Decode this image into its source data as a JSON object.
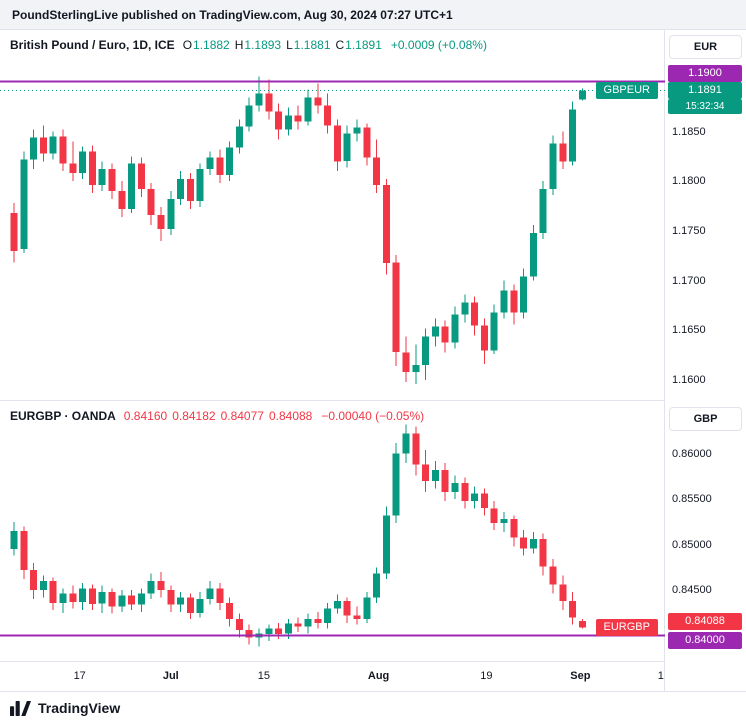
{
  "attribution": "PoundSterlingLive published on TradingView.com, Aug 30, 2024 07:27 UTC+1",
  "footer": {
    "brand": "TradingView"
  },
  "colors": {
    "up": "#089981",
    "down": "#f23645",
    "level": "#9c27b0",
    "text": "#131722",
    "border": "#e0e3eb",
    "header_bg": "#f1f3f6"
  },
  "panels": [
    {
      "legend_title": "British Pound / Euro, 1D, ICE",
      "ohlc": [
        {
          "label": "O",
          "value": "1.1882"
        },
        {
          "label": "H",
          "value": "1.1893"
        },
        {
          "label": "L",
          "value": "1.1881"
        },
        {
          "label": "C",
          "value": "1.1891"
        }
      ],
      "change": "+0.0009 (+0.08%)",
      "currency_button": "EUR",
      "symbol_tag": "GBPEUR",
      "price_badge": "1.1891",
      "countdown": "15:32:34",
      "level_badge": "1.1900"
    },
    {
      "legend_title": "EURGBP · OANDA",
      "values": [
        "0.84160",
        "0.84182",
        "0.84077",
        "0.84088"
      ],
      "change": "−0.00040 (−0.05%)",
      "currency_button": "GBP",
      "symbol_tag": "EURGBP",
      "price_badge": "0.84088",
      "level_badge": "0.84000"
    }
  ],
  "chart_data": [
    {
      "type": "candlestick",
      "symbol": "GBPEUR",
      "title": "British Pound / Euro, 1D, ICE",
      "timeframe": "1D",
      "ymin": 1.158,
      "ymax": 1.1952,
      "level_line": 1.19,
      "current_price": 1.1891,
      "last_ohlc": {
        "open": 1.1882,
        "high": 1.1893,
        "low": 1.1881,
        "close": 1.1891,
        "change": 0.0009,
        "change_pct": 0.08
      },
      "ticks": [
        {
          "value": 1.185,
          "label": "1.1850"
        },
        {
          "value": 1.18,
          "label": "1.1800"
        },
        {
          "value": 1.175,
          "label": "1.1750"
        },
        {
          "value": 1.17,
          "label": "1.1700"
        },
        {
          "value": 1.165,
          "label": "1.1650"
        },
        {
          "value": 1.16,
          "label": "1.1600"
        }
      ],
      "x_ticks": [
        {
          "label": "17",
          "i": 6.7
        },
        {
          "label": "Jul",
          "i": 16,
          "b": true
        },
        {
          "label": "15",
          "i": 25.5
        },
        {
          "label": "Aug",
          "i": 37.2,
          "b": true
        },
        {
          "label": "19",
          "i": 48.2
        },
        {
          "label": "Sep",
          "i": 57.8,
          "b": true
        },
        {
          "label": "1",
          "i": 66
        }
      ],
      "candles": [
        [
          1.1768,
          1.1778,
          1.1718,
          1.173
        ],
        [
          1.1732,
          1.183,
          1.1728,
          1.1822
        ],
        [
          1.1822,
          1.1852,
          1.1812,
          1.1844
        ],
        [
          1.1844,
          1.1856,
          1.182,
          1.1828
        ],
        [
          1.1828,
          1.185,
          1.1822,
          1.1845
        ],
        [
          1.1845,
          1.1852,
          1.181,
          1.1818
        ],
        [
          1.1818,
          1.184,
          1.18,
          1.1808
        ],
        [
          1.1808,
          1.1835,
          1.1802,
          1.183
        ],
        [
          1.183,
          1.1836,
          1.1788,
          1.1796
        ],
        [
          1.1796,
          1.182,
          1.179,
          1.1812
        ],
        [
          1.1812,
          1.1818,
          1.1782,
          1.179
        ],
        [
          1.179,
          1.18,
          1.1764,
          1.1772
        ],
        [
          1.1772,
          1.1825,
          1.1768,
          1.1818
        ],
        [
          1.1818,
          1.1824,
          1.1784,
          1.1792
        ],
        [
          1.1792,
          1.1798,
          1.1756,
          1.1766
        ],
        [
          1.1766,
          1.1774,
          1.174,
          1.1752
        ],
        [
          1.1752,
          1.179,
          1.1746,
          1.1782
        ],
        [
          1.1782,
          1.181,
          1.1776,
          1.1802
        ],
        [
          1.1802,
          1.1808,
          1.1772,
          1.178
        ],
        [
          1.178,
          1.1818,
          1.1774,
          1.1812
        ],
        [
          1.1812,
          1.183,
          1.1806,
          1.1824
        ],
        [
          1.1824,
          1.1832,
          1.1798,
          1.1806
        ],
        [
          1.1806,
          1.184,
          1.18,
          1.1834
        ],
        [
          1.1834,
          1.1862,
          1.1828,
          1.1855
        ],
        [
          1.1855,
          1.1884,
          1.185,
          1.1876
        ],
        [
          1.1876,
          1.1905,
          1.187,
          1.1888
        ],
        [
          1.1888,
          1.1902,
          1.1862,
          1.187
        ],
        [
          1.187,
          1.1878,
          1.1842,
          1.1852
        ],
        [
          1.1852,
          1.1874,
          1.1846,
          1.1866
        ],
        [
          1.1866,
          1.1876,
          1.1852,
          1.186
        ],
        [
          1.186,
          1.1892,
          1.1856,
          1.1884
        ],
        [
          1.1884,
          1.1898,
          1.1868,
          1.1876
        ],
        [
          1.1876,
          1.1888,
          1.1848,
          1.1856
        ],
        [
          1.1856,
          1.1862,
          1.181,
          1.182
        ],
        [
          1.182,
          1.1856,
          1.1814,
          1.1848
        ],
        [
          1.1848,
          1.1862,
          1.184,
          1.1854
        ],
        [
          1.1854,
          1.1858,
          1.1816,
          1.1824
        ],
        [
          1.1824,
          1.1842,
          1.1788,
          1.1796
        ],
        [
          1.1796,
          1.1802,
          1.1706,
          1.1718
        ],
        [
          1.1718,
          1.1726,
          1.1614,
          1.1628
        ],
        [
          1.1628,
          1.1644,
          1.1598,
          1.1608
        ],
        [
          1.1608,
          1.1636,
          1.1596,
          1.1615
        ],
        [
          1.1615,
          1.1652,
          1.16,
          1.1644
        ],
        [
          1.1644,
          1.1662,
          1.1634,
          1.1654
        ],
        [
          1.1654,
          1.166,
          1.1628,
          1.1638
        ],
        [
          1.1638,
          1.1674,
          1.1632,
          1.1666
        ],
        [
          1.1666,
          1.1686,
          1.1658,
          1.1678
        ],
        [
          1.1678,
          1.1684,
          1.1645,
          1.1655
        ],
        [
          1.1655,
          1.1662,
          1.1616,
          1.163
        ],
        [
          1.163,
          1.1676,
          1.1626,
          1.1668
        ],
        [
          1.1668,
          1.17,
          1.1662,
          1.169
        ],
        [
          1.169,
          1.1696,
          1.1656,
          1.1668
        ],
        [
          1.1668,
          1.1712,
          1.1662,
          1.1704
        ],
        [
          1.1704,
          1.1756,
          1.17,
          1.1748
        ],
        [
          1.1748,
          1.18,
          1.1742,
          1.1792
        ],
        [
          1.1792,
          1.1846,
          1.1786,
          1.1838
        ],
        [
          1.1838,
          1.185,
          1.1812,
          1.182
        ],
        [
          1.182,
          1.188,
          1.1816,
          1.1872
        ],
        [
          1.1882,
          1.1893,
          1.1881,
          1.1891
        ]
      ]
    },
    {
      "type": "candlestick",
      "symbol": "EURGBP",
      "title": "EURGBP · OANDA",
      "timeframe": "1D",
      "ymin": 0.8372,
      "ymax": 0.8658,
      "level_line": 0.84,
      "current_price": 0.84088,
      "last_ohlc": {
        "open": 0.8416,
        "high": 0.84182,
        "low": 0.84077,
        "close": 0.84088,
        "change": -0.0004,
        "change_pct": -0.05
      },
      "ticks": [
        {
          "value": 0.86,
          "label": "0.86000"
        },
        {
          "value": 0.855,
          "label": "0.85500"
        },
        {
          "value": 0.85,
          "label": "0.85000"
        },
        {
          "value": 0.845,
          "label": "0.84500"
        }
      ],
      "candles": [
        [
          0.8495,
          0.8525,
          0.8488,
          0.8515
        ],
        [
          0.8515,
          0.852,
          0.8462,
          0.8472
        ],
        [
          0.8472,
          0.848,
          0.844,
          0.845
        ],
        [
          0.845,
          0.8466,
          0.8442,
          0.846
        ],
        [
          0.846,
          0.8464,
          0.8428,
          0.8436
        ],
        [
          0.8436,
          0.8452,
          0.8425,
          0.8446
        ],
        [
          0.8446,
          0.8455,
          0.843,
          0.8437
        ],
        [
          0.8437,
          0.8458,
          0.8428,
          0.8452
        ],
        [
          0.8452,
          0.8456,
          0.8428,
          0.8435
        ],
        [
          0.8435,
          0.8455,
          0.8425,
          0.8448
        ],
        [
          0.8448,
          0.8452,
          0.8424,
          0.8432
        ],
        [
          0.8432,
          0.845,
          0.8426,
          0.8444
        ],
        [
          0.8444,
          0.845,
          0.8428,
          0.8434
        ],
        [
          0.8434,
          0.8452,
          0.8426,
          0.8446
        ],
        [
          0.8446,
          0.8468,
          0.844,
          0.846
        ],
        [
          0.846,
          0.847,
          0.8442,
          0.845
        ],
        [
          0.845,
          0.8455,
          0.8426,
          0.8434
        ],
        [
          0.8434,
          0.8448,
          0.8426,
          0.8442
        ],
        [
          0.8442,
          0.8446,
          0.8418,
          0.8425
        ],
        [
          0.8425,
          0.8448,
          0.842,
          0.844
        ],
        [
          0.844,
          0.846,
          0.8434,
          0.8452
        ],
        [
          0.8452,
          0.8458,
          0.8428,
          0.8436
        ],
        [
          0.8436,
          0.8442,
          0.841,
          0.8418
        ],
        [
          0.8418,
          0.8424,
          0.8398,
          0.8406
        ],
        [
          0.8406,
          0.8412,
          0.839,
          0.8398
        ],
        [
          0.8398,
          0.8408,
          0.8388,
          0.8402
        ],
        [
          0.8402,
          0.8412,
          0.8394,
          0.8408
        ],
        [
          0.8408,
          0.8414,
          0.8396,
          0.8402
        ],
        [
          0.8402,
          0.8418,
          0.8396,
          0.8413
        ],
        [
          0.8413,
          0.842,
          0.8404,
          0.841
        ],
        [
          0.841,
          0.8424,
          0.8402,
          0.8418
        ],
        [
          0.8418,
          0.8426,
          0.8408,
          0.8414
        ],
        [
          0.8414,
          0.8436,
          0.8408,
          0.843
        ],
        [
          0.843,
          0.8445,
          0.8424,
          0.8438
        ],
        [
          0.8438,
          0.8442,
          0.8414,
          0.8422
        ],
        [
          0.8422,
          0.8432,
          0.8412,
          0.8418
        ],
        [
          0.8418,
          0.8448,
          0.8414,
          0.8442
        ],
        [
          0.8442,
          0.8475,
          0.8436,
          0.8468
        ],
        [
          0.8468,
          0.8542,
          0.8462,
          0.8532
        ],
        [
          0.8532,
          0.8612,
          0.8524,
          0.86
        ],
        [
          0.86,
          0.8632,
          0.859,
          0.8622
        ],
        [
          0.8622,
          0.863,
          0.8576,
          0.8588
        ],
        [
          0.8588,
          0.8604,
          0.8558,
          0.857
        ],
        [
          0.857,
          0.8592,
          0.8562,
          0.8582
        ],
        [
          0.8582,
          0.859,
          0.8548,
          0.8558
        ],
        [
          0.8558,
          0.8576,
          0.855,
          0.8568
        ],
        [
          0.8568,
          0.8574,
          0.854,
          0.8548
        ],
        [
          0.8548,
          0.8564,
          0.854,
          0.8556
        ],
        [
          0.8556,
          0.8562,
          0.8532,
          0.854
        ],
        [
          0.854,
          0.8548,
          0.8516,
          0.8524
        ],
        [
          0.8524,
          0.8536,
          0.8514,
          0.8528
        ],
        [
          0.8528,
          0.8532,
          0.8498,
          0.8508
        ],
        [
          0.8508,
          0.8516,
          0.8488,
          0.8496
        ],
        [
          0.8496,
          0.8514,
          0.849,
          0.8506
        ],
        [
          0.8506,
          0.8512,
          0.8466,
          0.8476
        ],
        [
          0.8476,
          0.8484,
          0.8446,
          0.8456
        ],
        [
          0.8456,
          0.8466,
          0.8428,
          0.8438
        ],
        [
          0.8438,
          0.8448,
          0.8412,
          0.842
        ],
        [
          0.8416,
          0.84182,
          0.84077,
          0.84088
        ]
      ]
    }
  ]
}
